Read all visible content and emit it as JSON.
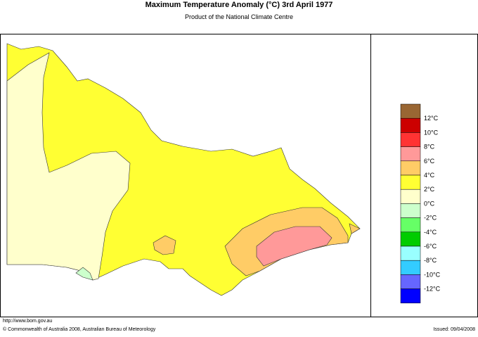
{
  "header": {
    "title": "Maximum Temperature Anomaly (°C)  3rd April 1977",
    "subtitle": "Product of the National Climate Centre"
  },
  "legend": {
    "items": [
      {
        "color": "#996633"
      },
      {
        "color": "#cc0000",
        "label": "12°C"
      },
      {
        "color": "#ff3333",
        "label": "10°C"
      },
      {
        "color": "#ff9999",
        "label": "8°C"
      },
      {
        "color": "#ffcc66",
        "label": "6°C"
      },
      {
        "color": "#ffff33",
        "label": "4°C"
      },
      {
        "color": "#ffffcc",
        "label": "2°C"
      },
      {
        "color": "#ccffcc",
        "label": "0°C"
      },
      {
        "color": "#66ff66",
        "label": "-2°C"
      },
      {
        "color": "#00cc00",
        "label": "-4°C"
      },
      {
        "color": "#99ffff",
        "label": "-6°C"
      },
      {
        "color": "#33ccff",
        "label": "-8°C"
      },
      {
        "color": "#6666ff",
        "label": "-10°C"
      },
      {
        "color": "#0000ff",
        "label": "-12°C"
      }
    ]
  },
  "footer": {
    "url": "http://www.bom.gov.au",
    "copyright": "© Commonwealth of Australia 2008, Australian Bureau of Meteorology",
    "issued": "Issued: 09/04/2008"
  }
}
